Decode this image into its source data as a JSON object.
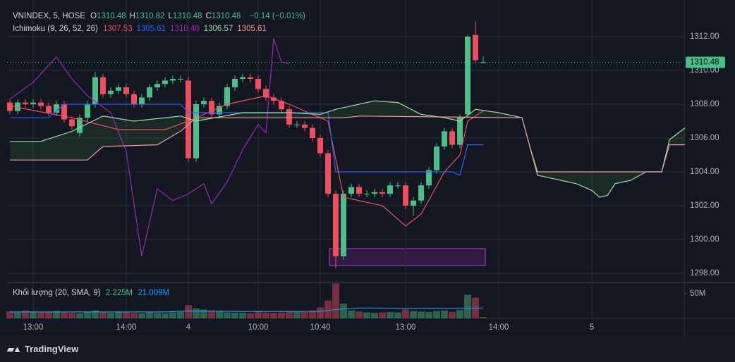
{
  "chart_data": {
    "type": "candlestick",
    "symbol": "VNINDEX, 5, HOSE",
    "ohlc_legend": [
      {
        "label": "O",
        "value": 1310.48
      },
      {
        "label": "H",
        "value": 1310.82
      },
      {
        "label": "L",
        "value": 1310.48
      },
      {
        "label": "C",
        "value": 1310.48
      }
    ],
    "change": "−0.14 (−0.01%)",
    "up_color": "#4bbf87",
    "down_color": "#f04e5e",
    "xlim": [
      -0.36,
      86.9
    ],
    "xticks": [
      {
        "value": 3,
        "label": "13:00"
      },
      {
        "value": 15,
        "label": "14:00"
      },
      {
        "value": 23,
        "label": "4"
      },
      {
        "value": 32,
        "label": "10:00"
      },
      {
        "value": 40,
        "label": "10:40"
      },
      {
        "value": 51,
        "label": "13:00"
      },
      {
        "value": 63,
        "label": "14:00"
      },
      {
        "value": 75,
        "label": "5"
      }
    ],
    "ylim": [
      1297.5,
      1313.75
    ],
    "yticks": [
      {
        "value": 1298,
        "label": "1298.00"
      },
      {
        "value": 1300,
        "label": "1300.00"
      },
      {
        "value": 1302,
        "label": "1302.00"
      },
      {
        "value": 1304,
        "label": "1304.00"
      },
      {
        "value": 1306,
        "label": "1306.00"
      },
      {
        "value": 1308,
        "label": "1308.00"
      },
      {
        "value": 1310,
        "label": "1310.00"
      },
      {
        "value": 1312,
        "label": "1312.00"
      }
    ],
    "grid": true,
    "candles": {
      "x": [
        0,
        1,
        2,
        3,
        4,
        5,
        6,
        7,
        8,
        9,
        10,
        11,
        12,
        13,
        14,
        15,
        16,
        17,
        18,
        19,
        20,
        21,
        22,
        23,
        24,
        25,
        26,
        27,
        28,
        29,
        30,
        31,
        32,
        33,
        34,
        35,
        36,
        37,
        38,
        39,
        40,
        41,
        42,
        43,
        44,
        45,
        46,
        47,
        48,
        49,
        50,
        51,
        52,
        53,
        54,
        55,
        56,
        57,
        58,
        59,
        60,
        61
      ],
      "open": [
        1308.1,
        1307.6,
        1308.1,
        1308.0,
        1308.1,
        1307.9,
        1307.5,
        1308.0,
        1307.1,
        1306.3,
        1307.2,
        1308.0,
        1309.6,
        1308.6,
        1308.8,
        1309.0,
        1308.6,
        1308.0,
        1308.4,
        1309.0,
        1309.2,
        1309.4,
        1309.5,
        1309.4,
        1304.8,
        1308.0,
        1308.2,
        1307.4,
        1307.9,
        1309.0,
        1309.5,
        1309.6,
        1309.5,
        1308.9,
        1308.4,
        1308.2,
        1307.7,
        1306.8,
        1306.8,
        1306.6,
        1306.0,
        1305.1,
        1302.7,
        1299.0,
        1302.7,
        1303.1,
        1302.7,
        1302.7,
        1302.8,
        1302.7,
        1303.2,
        1303.2,
        1302.0,
        1302.3,
        1303.2,
        1304.1,
        1305.5,
        1306.4,
        1305.6,
        1307.4,
        1312.1,
        1310.48
      ],
      "high": [
        1308.3,
        1308.3,
        1308.3,
        1308.3,
        1308.3,
        1308.1,
        1308.2,
        1308.2,
        1307.3,
        1307.4,
        1308.2,
        1309.9,
        1309.8,
        1309.0,
        1309.2,
        1309.2,
        1308.8,
        1308.6,
        1309.2,
        1309.4,
        1309.6,
        1309.7,
        1309.7,
        1309.6,
        1308.2,
        1308.4,
        1308.4,
        1308.1,
        1309.2,
        1309.7,
        1309.8,
        1309.8,
        1309.7,
        1309.1,
        1308.6,
        1308.4,
        1307.9,
        1307.0,
        1307.0,
        1306.8,
        1306.2,
        1305.3,
        1302.9,
        1302.9,
        1303.3,
        1303.3,
        1302.9,
        1303.0,
        1303.0,
        1303.4,
        1303.4,
        1303.4,
        1302.5,
        1303.4,
        1304.3,
        1305.7,
        1306.6,
        1306.6,
        1307.4,
        1312.1,
        1312.9,
        1310.82
      ],
      "low": [
        1307.4,
        1307.4,
        1307.8,
        1307.8,
        1307.7,
        1307.3,
        1307.3,
        1306.9,
        1306.5,
        1306.1,
        1307.0,
        1307.8,
        1308.4,
        1308.4,
        1308.6,
        1308.4,
        1307.8,
        1307.8,
        1308.2,
        1308.8,
        1309.0,
        1309.2,
        1309.3,
        1304.6,
        1304.6,
        1307.8,
        1307.2,
        1307.2,
        1307.7,
        1308.8,
        1309.3,
        1309.3,
        1308.7,
        1308.2,
        1308.0,
        1307.5,
        1306.6,
        1306.6,
        1306.4,
        1305.8,
        1304.9,
        1302.5,
        1298.3,
        1298.8,
        1302.5,
        1302.5,
        1302.5,
        1302.5,
        1302.5,
        1302.5,
        1303.0,
        1301.8,
        1301.4,
        1302.1,
        1303.0,
        1303.9,
        1305.3,
        1305.4,
        1305.4,
        1307.2,
        1310.4,
        1310.48
      ],
      "close": [
        1307.6,
        1308.1,
        1308.0,
        1308.1,
        1307.9,
        1307.5,
        1308.0,
        1307.1,
        1306.7,
        1307.2,
        1308.0,
        1309.6,
        1308.6,
        1308.8,
        1309.0,
        1308.6,
        1308.0,
        1308.4,
        1309.0,
        1309.2,
        1309.4,
        1309.5,
        1309.5,
        1304.8,
        1308.0,
        1308.2,
        1307.4,
        1307.9,
        1309.0,
        1309.5,
        1309.6,
        1309.5,
        1308.9,
        1308.4,
        1308.2,
        1307.7,
        1306.8,
        1306.8,
        1306.6,
        1306.0,
        1305.1,
        1302.7,
        1299.0,
        1302.7,
        1303.1,
        1302.7,
        1302.7,
        1302.8,
        1302.7,
        1303.2,
        1303.2,
        1302.0,
        1302.3,
        1303.2,
        1304.1,
        1305.5,
        1306.4,
        1305.6,
        1307.2,
        1312.0,
        1310.6,
        1310.48
      ]
    },
    "indicator": "Ichimoku (9, 26, 52, 26)",
    "lines": [
      {
        "name": "Conversion Line",
        "color": "#f04e5e",
        "legend_value": 1307.53,
        "x": [
          0,
          8,
          14,
          20,
          23,
          28,
          33,
          36,
          41,
          43,
          48,
          51,
          53,
          56,
          58,
          59,
          61
        ],
        "values": [
          1307.9,
          1307.2,
          1306.5,
          1306.5,
          1307.0,
          1308.0,
          1308.5,
          1308.0,
          1307.0,
          1302.5,
          1302.0,
          1300.8,
          1301.5,
          1304.0,
          1305.0,
          1307.0,
          1307.6
        ]
      },
      {
        "name": "Base Line",
        "color": "#2962ff",
        "legend_value": 1305.61,
        "x": [
          0,
          5,
          7,
          22,
          23,
          41,
          42,
          57,
          58,
          59,
          61
        ],
        "values": [
          1307.2,
          1307.2,
          1308.0,
          1308.0,
          1307.5,
          1307.5,
          1304.0,
          1304.0,
          1303.8,
          1305.6,
          1305.6
        ]
      },
      {
        "name": "Lagging Span",
        "color": "#9c27b0",
        "legend_value": 1310.48,
        "x": [
          0,
          3,
          6,
          8,
          10,
          13,
          15,
          17,
          19,
          21,
          23,
          25,
          26,
          28,
          30,
          32,
          33,
          34,
          35,
          36
        ],
        "values": [
          1308.3,
          1309.3,
          1310.8,
          1309.5,
          1308.5,
          1307.5,
          1305.2,
          1299.0,
          1303.0,
          1302.3,
          1302.7,
          1303.3,
          1302.1,
          1303.4,
          1305.3,
          1306.8,
          1306.3,
          1311.9,
          1310.5,
          1310.4
        ]
      },
      {
        "name": "Leading Span A",
        "color": "#a5d6a7",
        "legend_value": 1306.57,
        "x": [
          0,
          4,
          8,
          12,
          16,
          22,
          24,
          30,
          36,
          40,
          42,
          47,
          50,
          53,
          56,
          58,
          60,
          63,
          66,
          68,
          71,
          73,
          75,
          76,
          77,
          78,
          80,
          82,
          84,
          85,
          87
        ],
        "values": [
          1305.8,
          1305.8,
          1306.4,
          1307.3,
          1307.0,
          1307.3,
          1307.0,
          1307.5,
          1307.5,
          1307.4,
          1307.7,
          1308.2,
          1308.1,
          1307.4,
          1307.2,
          1307.0,
          1307.7,
          1307.5,
          1307.2,
          1303.8,
          1303.5,
          1303.3,
          1302.9,
          1302.5,
          1302.6,
          1303.3,
          1303.5,
          1304.0,
          1304.0,
          1305.9,
          1306.6
        ]
      },
      {
        "name": "Leading Span B",
        "color": "#ef9a9a",
        "legend_value": 1305.61,
        "x": [
          0,
          10,
          12,
          19,
          22,
          24,
          43,
          45,
          66,
          67,
          68,
          84,
          85,
          87
        ],
        "values": [
          1304.7,
          1304.7,
          1305.5,
          1305.6,
          1306.4,
          1307.2,
          1307.2,
          1307.3,
          1307.2,
          1305.5,
          1304.0,
          1304.0,
          1305.6,
          1305.6
        ]
      }
    ],
    "volume": {
      "title": "Khối lượng (20, SMA, 9)",
      "ylim": [
        0,
        71.5
      ],
      "yticks": [
        {
          "value": 50,
          "label": "50M"
        }
      ],
      "values": [
        14,
        12,
        16,
        14,
        12,
        13,
        15,
        12,
        11,
        10,
        14,
        16,
        12,
        11,
        13,
        12,
        11,
        10,
        12,
        11,
        10,
        12,
        13,
        27,
        20,
        18,
        16,
        14,
        12,
        12,
        11,
        10,
        14,
        12,
        11,
        12,
        15,
        14,
        13,
        16,
        22,
        36,
        71,
        30,
        16,
        14,
        12,
        11,
        12,
        13,
        12,
        18,
        15,
        14,
        13,
        15,
        16,
        13,
        17,
        48,
        42,
        2.225
      ],
      "value_label": "2.225M",
      "ma": {
        "color": "#2196f3",
        "x": [
          0,
          20,
          23,
          30,
          40,
          42,
          45,
          55,
          61
        ],
        "values": [
          13,
          13,
          15,
          14,
          14,
          18,
          21,
          20,
          21.009
        ],
        "value_label": "21.009M"
      }
    },
    "brand": "TradingView"
  }
}
